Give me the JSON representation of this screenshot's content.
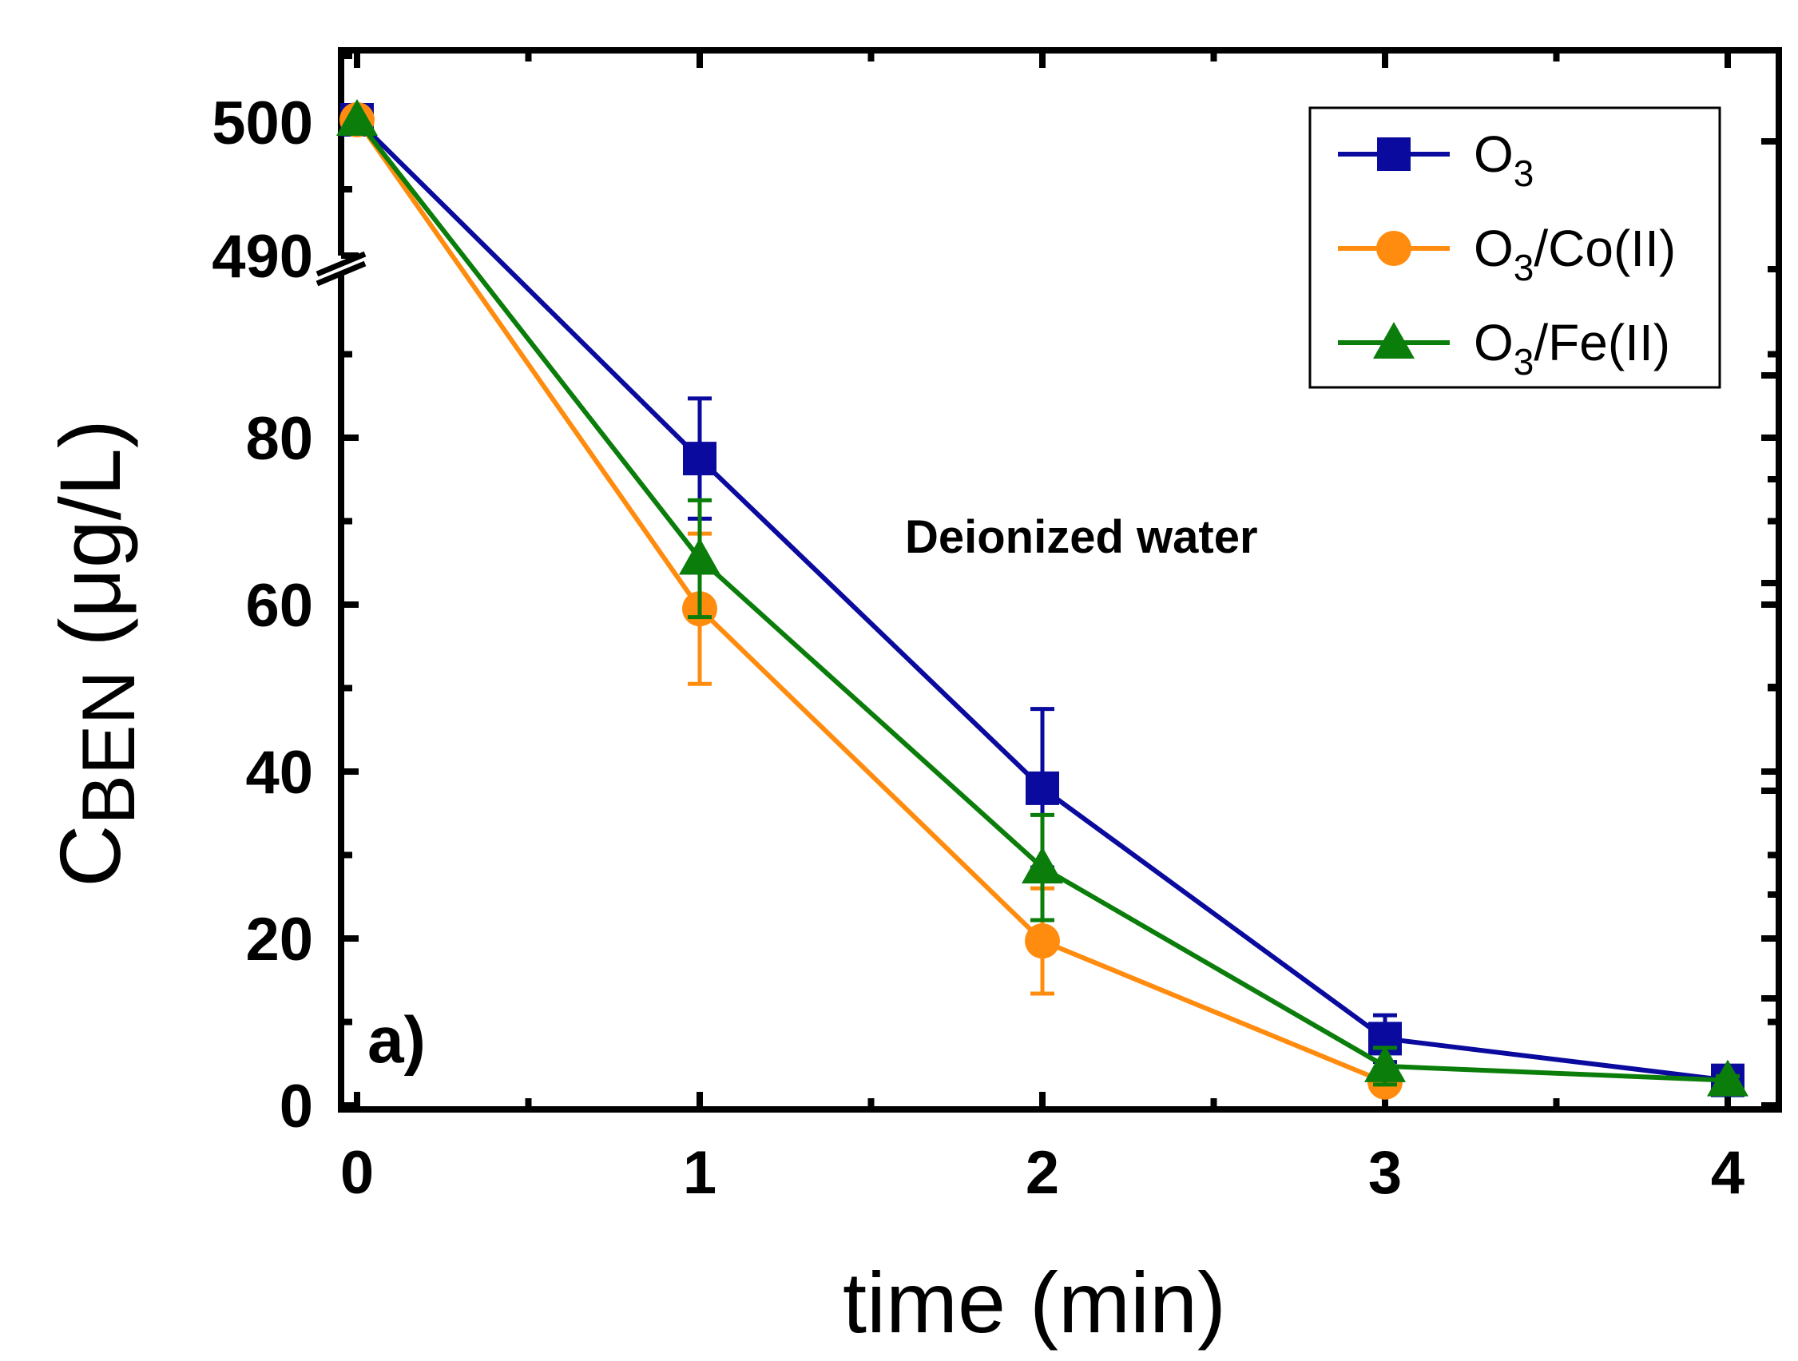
{
  "chart_data": {
    "type": "line",
    "panel_label": "a)",
    "annotation": "Deionized water",
    "xlabel": "time (min)",
    "ylabel": {
      "main": "C",
      "subscript": "BEN",
      "unit": " (μg/L)"
    },
    "x": [
      0,
      1,
      2,
      3,
      4
    ],
    "xlim": [
      0,
      4.2
    ],
    "xticks": [
      "0",
      "1",
      "2",
      "3",
      "4"
    ],
    "ylim_lower": [
      0,
      90
    ],
    "ylim_upper": [
      488,
      502
    ],
    "yticks_lower": [
      "0",
      "20",
      "40",
      "60",
      "80"
    ],
    "yticks_upper": [
      "490",
      "500"
    ],
    "axis_break": "y between 90 and 488",
    "colors": {
      "O3": "#0a0a9e",
      "O3_Co": "#ff8c0f",
      "O3_Fe": "#0a7d0a",
      "axis": "#000000"
    },
    "series": [
      {
        "name": "O3",
        "legend": {
          "main": "O",
          "sub": "3",
          "rest": ""
        },
        "marker": "square",
        "color": "#0a0a9e",
        "values": [
          500,
          77.5,
          38,
          8,
          3
        ],
        "errors": [
          0,
          7.2,
          9.5,
          2.8,
          0.5
        ]
      },
      {
        "name": "O3/Co(II)",
        "legend": {
          "main": "O",
          "sub": "3",
          "rest": "/Co(II)"
        },
        "marker": "circle",
        "color": "#ff8c0f",
        "values": [
          500,
          59.5,
          19.7,
          2.8,
          null
        ],
        "errors": [
          0,
          9,
          6.3,
          0.5,
          0
        ]
      },
      {
        "name": "O3/Fe(II)",
        "legend": {
          "main": "O",
          "sub": "3",
          "rest": "/Fe(II)"
        },
        "marker": "triangle",
        "color": "#0a7d0a",
        "values": [
          500,
          65.5,
          28.5,
          4.7,
          3
        ],
        "errors": [
          0,
          7,
          6.3,
          2.2,
          0.5
        ]
      }
    ],
    "legend_position": "top-right",
    "grid": false
  }
}
